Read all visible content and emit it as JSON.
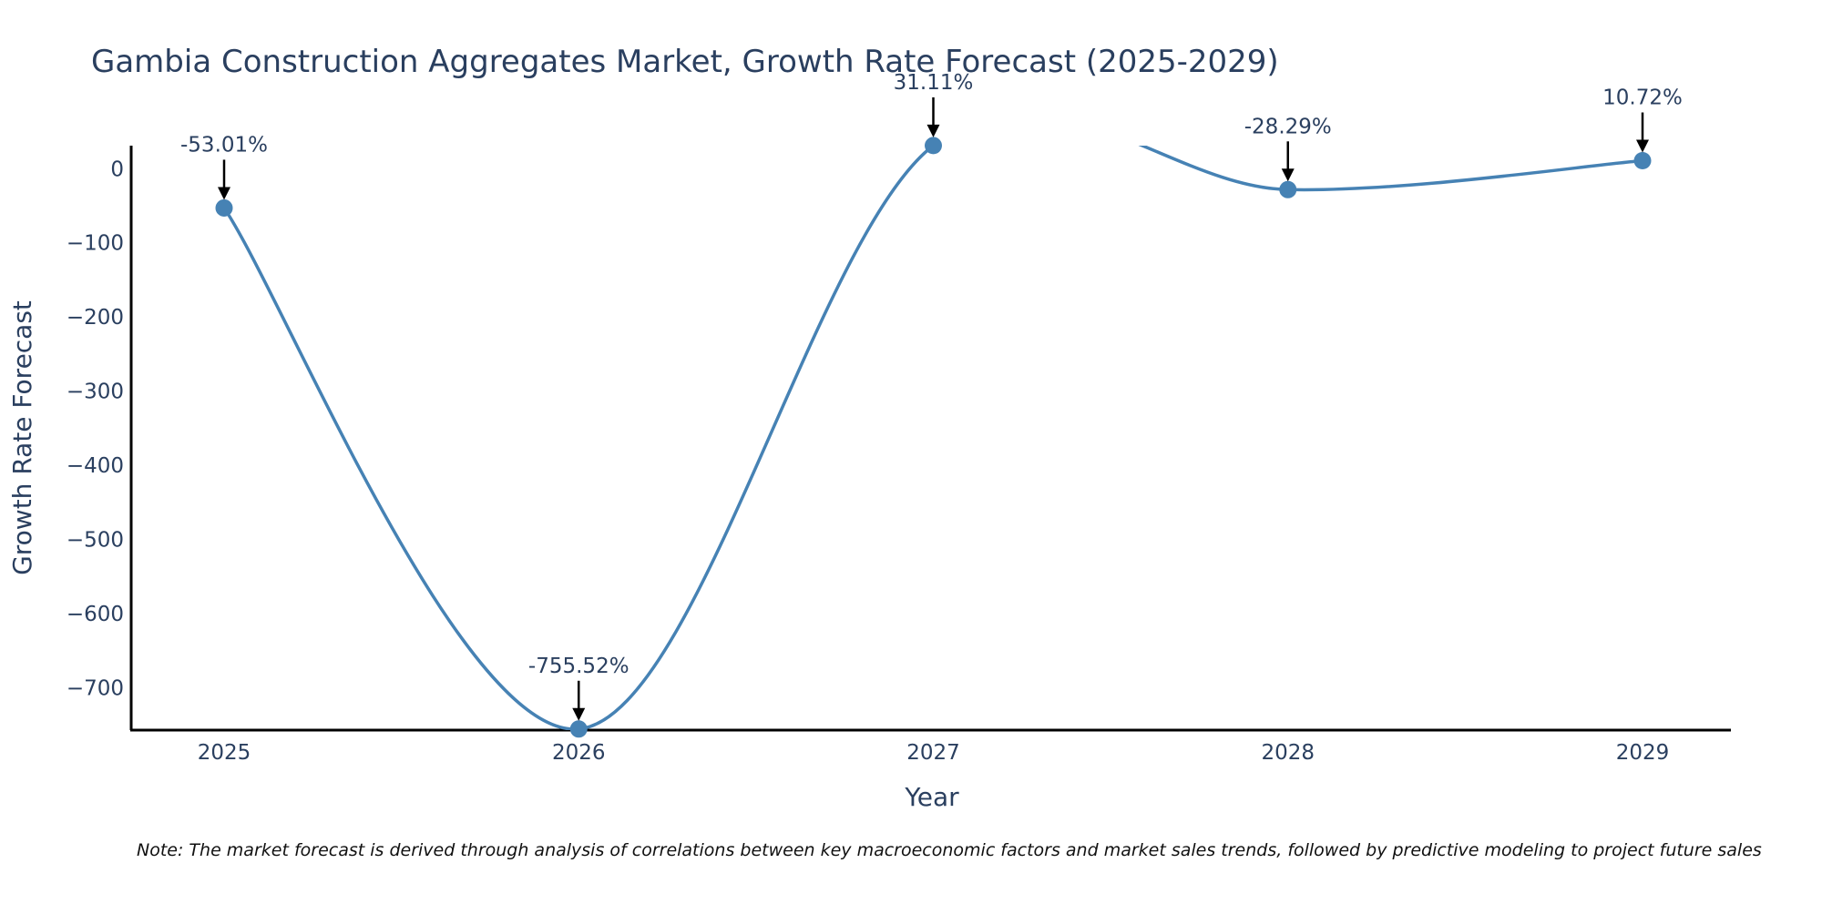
{
  "chart_data": {
    "type": "line",
    "title": "Gambia Construction Aggregates Market, Growth Rate Forecast (2025-2029)",
    "xlabel": "Year",
    "ylabel": "Growth Rate Forecast",
    "categories": [
      "2025",
      "2026",
      "2027",
      "2028",
      "2029"
    ],
    "series": [
      {
        "name": "Growth Rate Forecast",
        "values": [
          -53.01,
          -755.52,
          31.11,
          -28.29,
          10.72
        ]
      }
    ],
    "data_labels": [
      "-53.01%",
      "-755.52%",
      "31.11%",
      "-28.29%",
      "10.72%"
    ],
    "ylim": [
      -757,
      31
    ],
    "yticks": [
      0,
      -100,
      -200,
      -300,
      -400,
      -500,
      -600,
      -700
    ],
    "ytick_labels": [
      "0",
      "−100",
      "−200",
      "−300",
      "−400",
      "−500",
      "−600",
      "−700"
    ],
    "line_shape": "spline",
    "note": "Note: The market forecast is derived through analysis of correlations between key macroeconomic factors and market sales trends, followed by predictive modeling to project future sales",
    "colors": {
      "line": "#4682B4",
      "text": "#2A3F5F",
      "axis": "#000000",
      "arrow": "#000000",
      "background": "#FFFFFF"
    }
  }
}
